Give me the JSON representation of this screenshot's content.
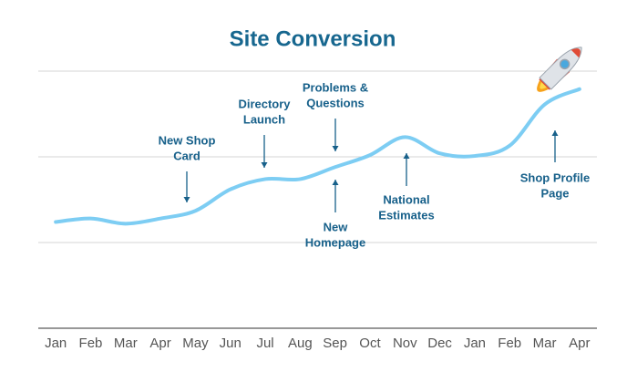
{
  "chart_data": {
    "type": "line",
    "title": "Site Conversion",
    "categories": [
      "Jan",
      "Feb",
      "Mar",
      "Apr",
      "May",
      "Jun",
      "Jul",
      "Aug",
      "Sep",
      "Oct",
      "Nov",
      "Dec",
      "Jan",
      "Feb",
      "Mar",
      "Apr"
    ],
    "values": [
      1.24,
      1.28,
      1.22,
      1.28,
      1.37,
      1.62,
      1.74,
      1.74,
      1.88,
      2.02,
      2.23,
      2.04,
      2.01,
      2.13,
      2.61,
      2.79
    ],
    "color": "#7dcdf3",
    "ylim": [
      0,
      3
    ],
    "yticks": [
      1,
      2,
      3
    ],
    "grid": true,
    "annotations": [
      {
        "lines": [
          "New Shop",
          "Card"
        ]
      },
      {
        "lines": [
          "Directory",
          "Launch"
        ]
      },
      {
        "lines": [
          "Problems &",
          "Questions"
        ]
      },
      {
        "lines": [
          "New",
          "Homepage"
        ]
      },
      {
        "lines": [
          "National",
          "Estimates"
        ]
      },
      {
        "lines": [
          "Shop Profile",
          "Page"
        ]
      }
    ]
  }
}
